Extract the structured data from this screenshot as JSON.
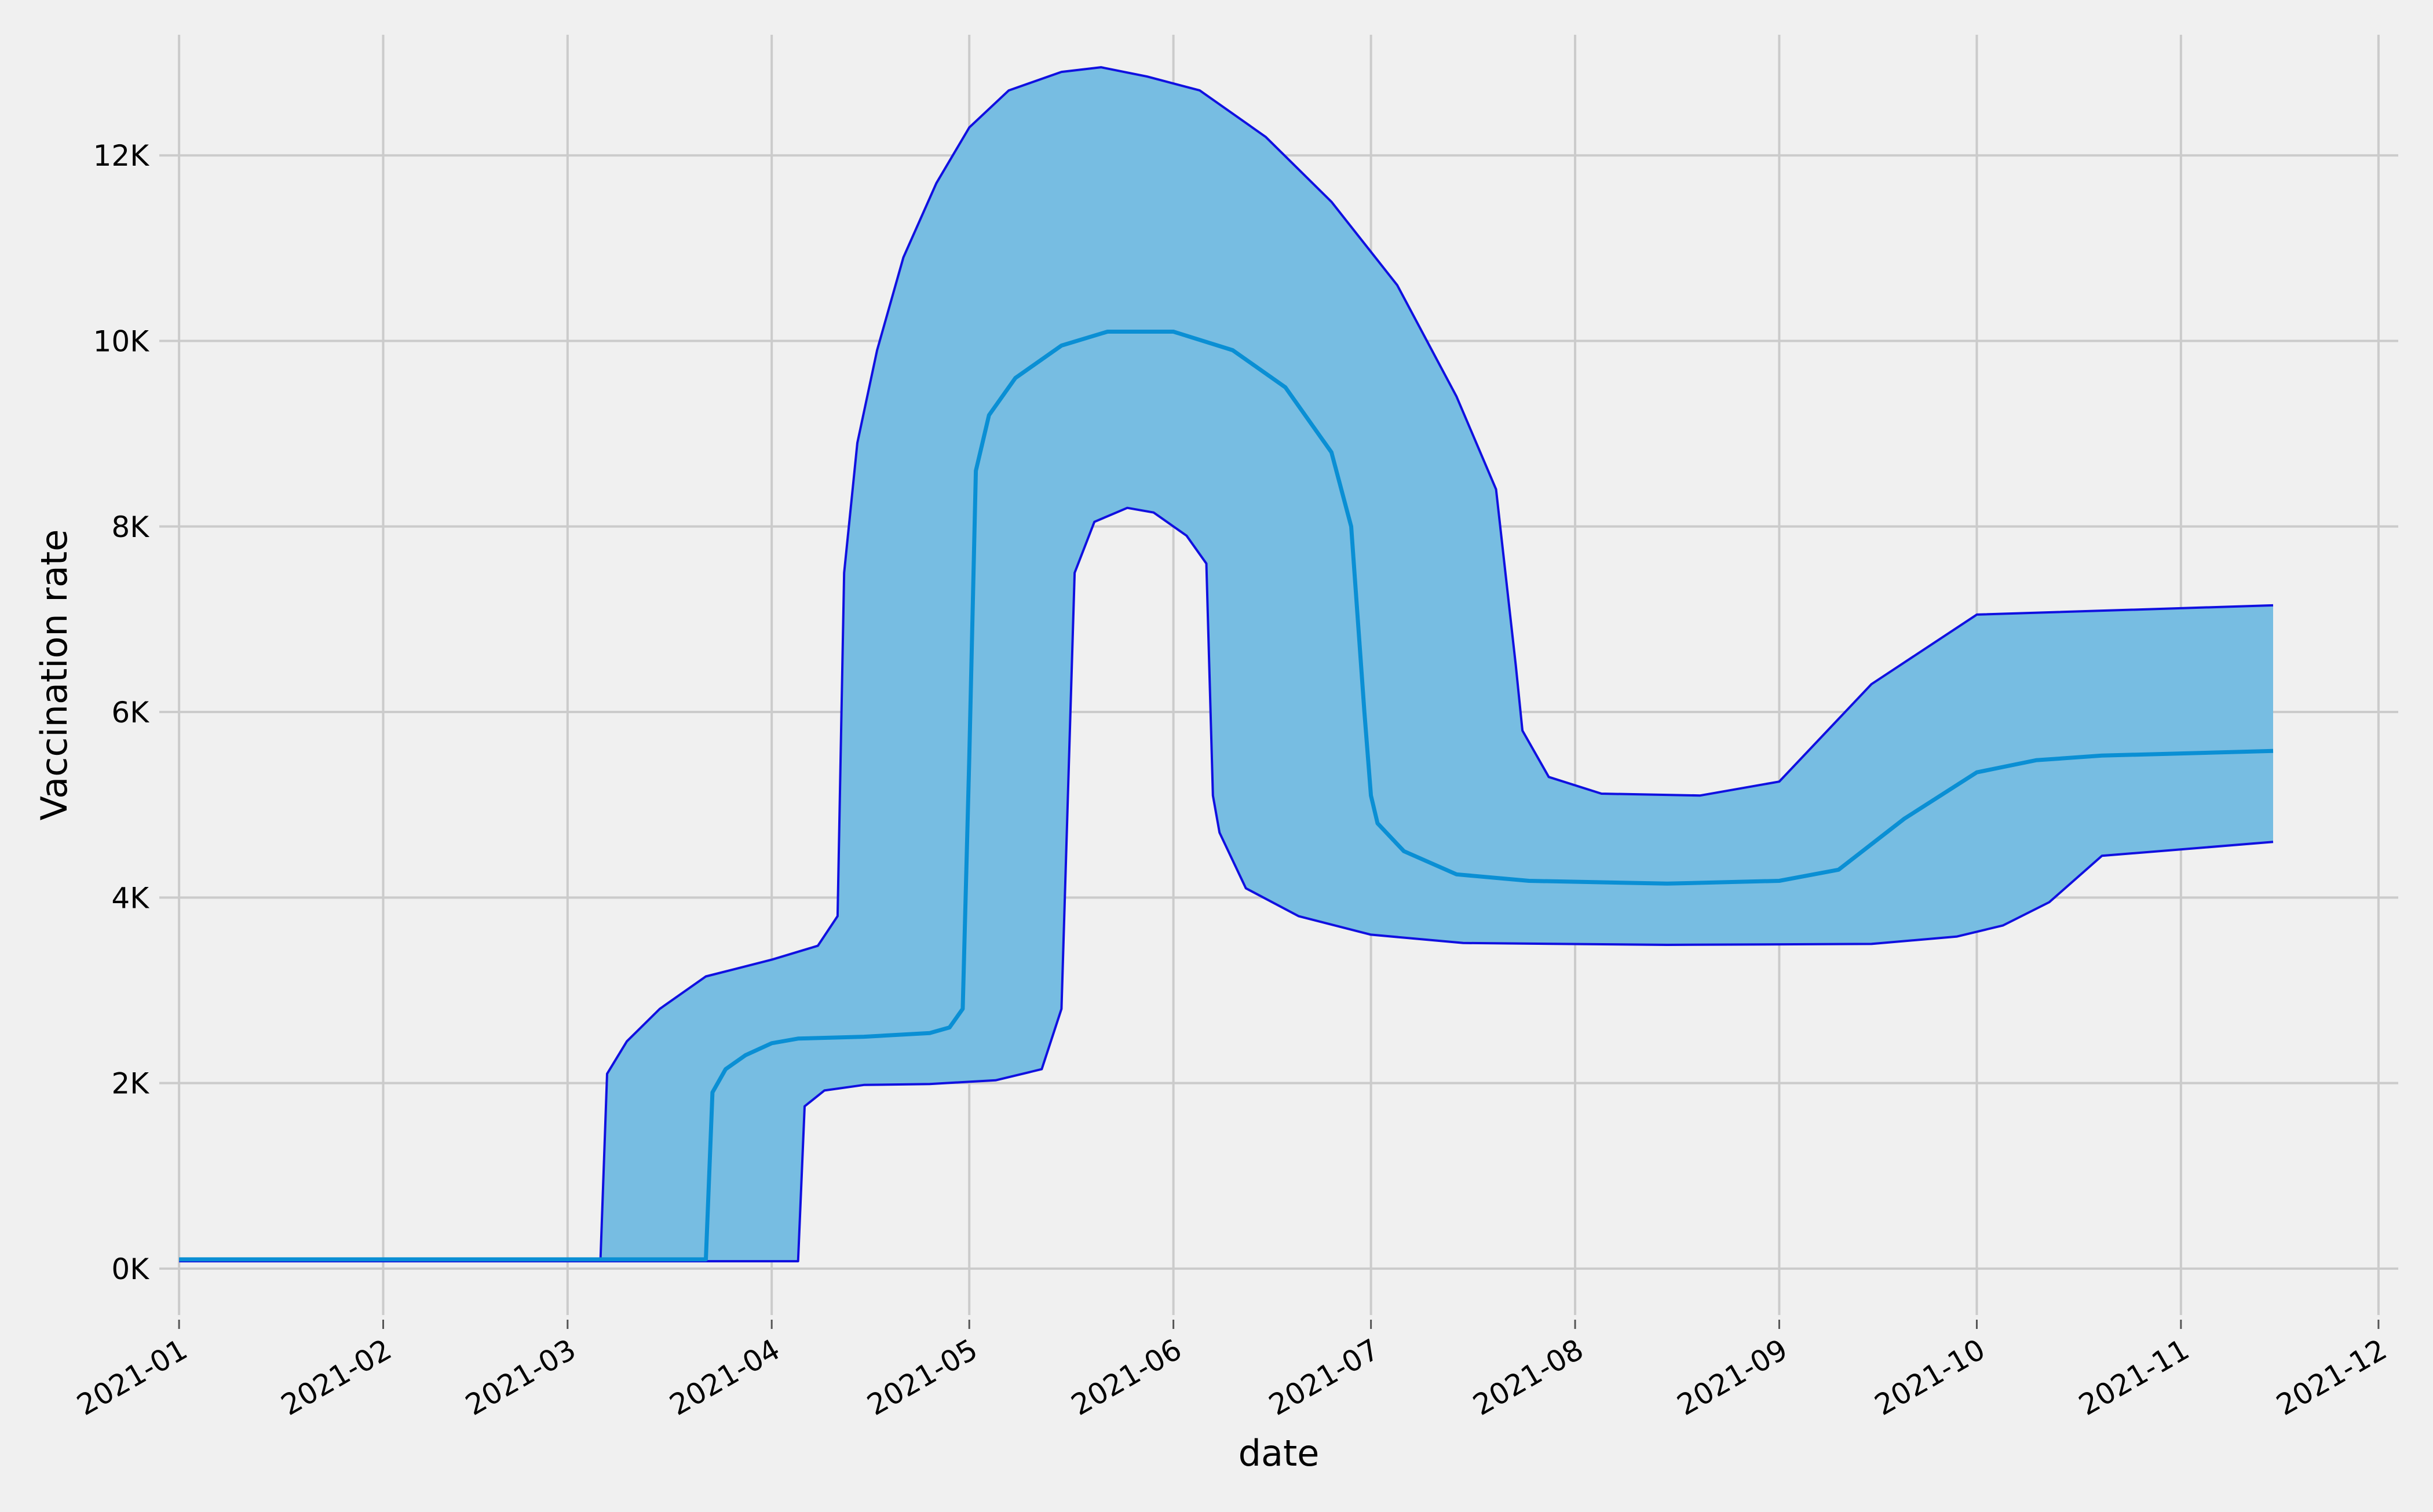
{
  "chart_data": {
    "type": "area",
    "title": "",
    "xlabel": "date",
    "ylabel": "Vaccination rate",
    "x_axis": {
      "type": "date",
      "range": [
        "2020-12-29",
        "2021-12-04"
      ],
      "ticks": [
        "2021-01-01",
        "2021-02-01",
        "2021-03-01",
        "2021-04-01",
        "2021-05-01",
        "2021-06-01",
        "2021-07-01",
        "2021-08-01",
        "2021-09-01",
        "2021-10-01",
        "2021-11-01",
        "2021-12-01"
      ],
      "tick_labels": [
        "2021-01",
        "2021-02",
        "2021-03",
        "2021-04",
        "2021-05",
        "2021-06",
        "2021-07",
        "2021-08",
        "2021-09",
        "2021-10",
        "2021-11",
        "2021-12"
      ]
    },
    "y_axis": {
      "range": [
        -500,
        13300
      ],
      "ticks": [
        0,
        2000,
        4000,
        6000,
        8000,
        10000,
        12000
      ],
      "tick_labels": [
        "0K",
        "2K",
        "4K",
        "6K",
        "8K",
        "10K",
        "12K"
      ]
    },
    "grid": true,
    "legend": "none",
    "colors": {
      "band": "#77bde2",
      "band_edge": "#1010e0",
      "median": "#0a8fd4",
      "background": "#f0f0f0",
      "grid": "#cbcbcb"
    },
    "series": [
      {
        "role": "median",
        "x": [
          "2021-01-01",
          "2021-03-22",
          "2021-03-23",
          "2021-03-25",
          "2021-03-28",
          "2021-04-01",
          "2021-04-05",
          "2021-04-15",
          "2021-04-25",
          "2021-04-28",
          "2021-04-30",
          "2021-05-01",
          "2021-05-02",
          "2021-05-04",
          "2021-05-08",
          "2021-05-15",
          "2021-05-22",
          "2021-06-01",
          "2021-06-10",
          "2021-06-18",
          "2021-06-25",
          "2021-06-28",
          "2021-06-30",
          "2021-07-01",
          "2021-07-02",
          "2021-07-06",
          "2021-07-14",
          "2021-07-25",
          "2021-08-15",
          "2021-09-01",
          "2021-09-10",
          "2021-09-20",
          "2021-10-01",
          "2021-10-10",
          "2021-10-20",
          "2021-11-15"
        ],
        "y": [
          100,
          100,
          1900,
          2150,
          2300,
          2430,
          2480,
          2500,
          2540,
          2600,
          2800,
          5500,
          8600,
          9200,
          9600,
          9950,
          10100,
          10100,
          9900,
          9500,
          8800,
          8000,
          6000,
          5100,
          4800,
          4500,
          4250,
          4180,
          4150,
          4180,
          4300,
          4850,
          5350,
          5480,
          5530,
          5580
        ]
      },
      {
        "role": "upper",
        "x": [
          "2021-01-01",
          "2021-03-06",
          "2021-03-07",
          "2021-03-10",
          "2021-03-15",
          "2021-03-22",
          "2021-04-01",
          "2021-04-08",
          "2021-04-11",
          "2021-04-12",
          "2021-04-14",
          "2021-04-17",
          "2021-04-21",
          "2021-04-26",
          "2021-05-01",
          "2021-05-07",
          "2021-05-15",
          "2021-05-21",
          "2021-05-28",
          "2021-06-05",
          "2021-06-15",
          "2021-06-25",
          "2021-07-05",
          "2021-07-14",
          "2021-07-20",
          "2021-07-23",
          "2021-07-24",
          "2021-07-28",
          "2021-08-05",
          "2021-08-20",
          "2021-09-01",
          "2021-09-15",
          "2021-10-01",
          "2021-11-15"
        ],
        "y": [
          100,
          100,
          2100,
          2450,
          2800,
          3150,
          3330,
          3480,
          3800,
          7500,
          8900,
          9900,
          10900,
          11700,
          12300,
          12700,
          12900,
          12950,
          12850,
          12700,
          12200,
          11500,
          10600,
          9400,
          8400,
          6500,
          5800,
          5300,
          5120,
          5100,
          5250,
          6300,
          7050,
          7150
        ]
      },
      {
        "role": "lower",
        "x": [
          "2021-01-01",
          "2021-04-05",
          "2021-04-06",
          "2021-04-09",
          "2021-04-15",
          "2021-04-25",
          "2021-05-05",
          "2021-05-12",
          "2021-05-15",
          "2021-05-17",
          "2021-05-20",
          "2021-05-25",
          "2021-05-29",
          "2021-06-03",
          "2021-06-06",
          "2021-06-07",
          "2021-06-08",
          "2021-06-12",
          "2021-06-20",
          "2021-07-01",
          "2021-07-15",
          "2021-08-15",
          "2021-09-15",
          "2021-09-28",
          "2021-10-05",
          "2021-10-12",
          "2021-10-20",
          "2021-11-15"
        ],
        "y": [
          80,
          80,
          1750,
          1920,
          1980,
          1990,
          2030,
          2150,
          2800,
          7500,
          8050,
          8200,
          8150,
          7900,
          7600,
          5100,
          4700,
          4100,
          3800,
          3600,
          3510,
          3490,
          3500,
          3580,
          3700,
          3950,
          4450,
          4600
        ]
      }
    ]
  }
}
